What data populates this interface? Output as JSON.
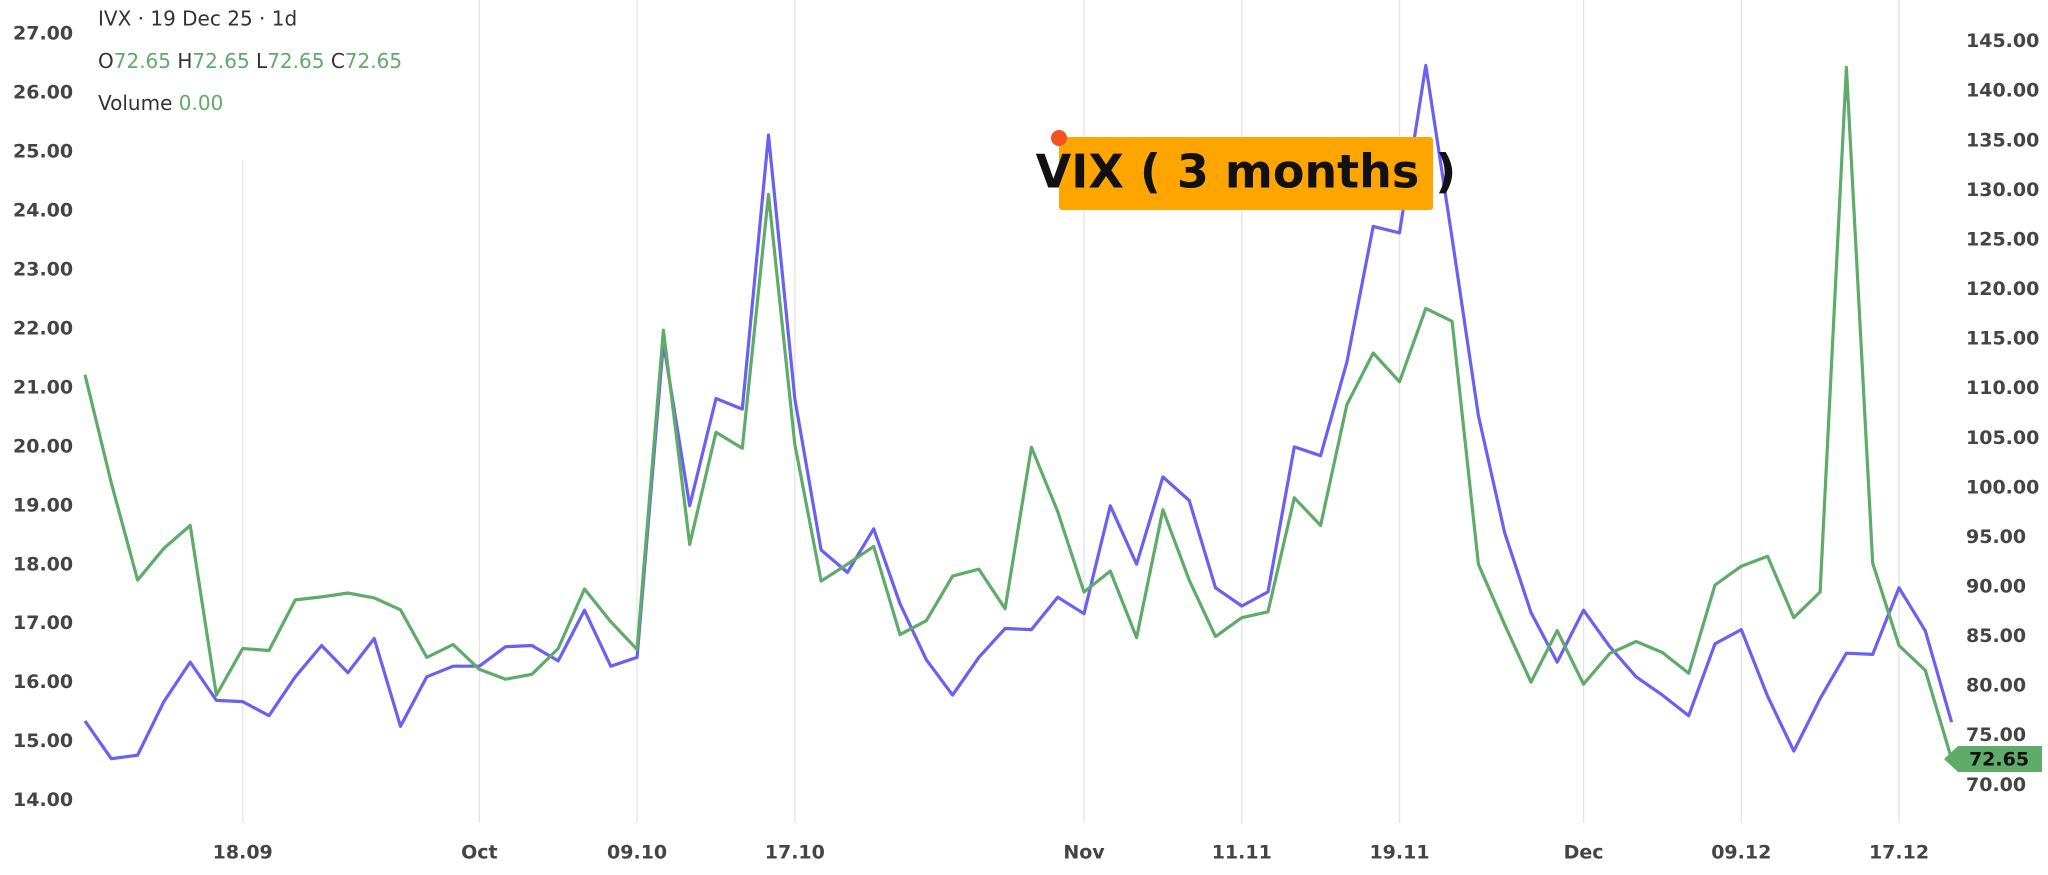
{
  "header": {
    "title": "IVX · 19 Dec 25 · 1d",
    "ohlc": [
      {
        "key": "O",
        "value": "72.65"
      },
      {
        "key": "H",
        "value": "72.65"
      },
      {
        "key": "L",
        "value": "72.65"
      },
      {
        "key": "C",
        "value": "72.65"
      }
    ],
    "volume_label": "Volume",
    "volume": "0.00"
  },
  "chart_data": {
    "type": "line",
    "annotation": "VIX ( 3 months )",
    "categories": [
      null,
      null,
      null,
      null,
      null,
      null,
      "18.09",
      null,
      null,
      null,
      null,
      null,
      null,
      null,
      null,
      "Oct",
      null,
      null,
      null,
      null,
      null,
      "09.10",
      null,
      null,
      null,
      null,
      null,
      "17.10",
      null,
      null,
      null,
      null,
      null,
      null,
      null,
      null,
      null,
      null,
      "Nov",
      null,
      null,
      null,
      null,
      null,
      "11.11",
      null,
      null,
      null,
      null,
      null,
      "19.11",
      null,
      null,
      null,
      null,
      null,
      null,
      "Dec",
      null,
      null,
      null,
      null,
      null,
      "09.12",
      null,
      null,
      null,
      null,
      null,
      "17.12",
      null,
      null
    ],
    "series": [
      {
        "color": "#6a60f2",
        "values": [
          15.35,
          14.71,
          14.77,
          15.68,
          16.35,
          15.7,
          15.68,
          15.44,
          16.1,
          16.63,
          16.17,
          16.75,
          15.26,
          16.1,
          16.28,
          16.28,
          16.61,
          16.63,
          16.37,
          17.23,
          16.28,
          16.43,
          21.77,
          19.0,
          20.82,
          20.64,
          25.29,
          20.82,
          18.25,
          17.87,
          18.61,
          17.34,
          16.39,
          15.79,
          16.43,
          16.92,
          16.9,
          17.45,
          17.17,
          19.0,
          18.01,
          19.49,
          19.09,
          17.61,
          17.3,
          17.54,
          20.0,
          19.85,
          21.44,
          23.74,
          23.63,
          26.47,
          23.54,
          20.53,
          18.54,
          17.19,
          16.35,
          17.23,
          16.61,
          16.1,
          15.79,
          15.44,
          16.66,
          16.9,
          15.77,
          14.84,
          15.73,
          16.5,
          16.48,
          17.61,
          16.88,
          15.33
        ]
      },
      {
        "color": "#5fab6a",
        "axis": "y2",
        "values": [
          111.4,
          100.5,
          90.7,
          93.9,
          96.2,
          79.1,
          83.8,
          83.6,
          88.7,
          89.0,
          89.4,
          88.9,
          87.7,
          82.9,
          84.2,
          81.7,
          80.7,
          81.2,
          83.8,
          89.8,
          86.5,
          83.7,
          115.9,
          94.3,
          105.6,
          104.0,
          129.6,
          104.4,
          90.6,
          92.3,
          94.1,
          85.2,
          86.6,
          91.1,
          91.8,
          87.8,
          104.1,
          97.6,
          89.5,
          91.6,
          84.9,
          97.8,
          90.7,
          85.0,
          86.9,
          87.5,
          99.0,
          96.2,
          108.4,
          113.6,
          110.7,
          118.1,
          116.8,
          92.3,
          86.2,
          80.4,
          85.6,
          80.2,
          83.3,
          84.5,
          83.4,
          81.3,
          90.2,
          92.1,
          93.1,
          86.9,
          89.5,
          142.4,
          92.4,
          84.1,
          81.6,
          72.65
        ]
      }
    ],
    "ylim": [
      13.62,
      27.58
    ],
    "yticks": [
      {
        "value": 14,
        "label": "14.00"
      },
      {
        "value": 15,
        "label": "15.00"
      },
      {
        "value": 16,
        "label": "16.00"
      },
      {
        "value": 17,
        "label": "17.00"
      },
      {
        "value": 18,
        "label": "18.00"
      },
      {
        "value": 19,
        "label": "19.00"
      },
      {
        "value": 20,
        "label": "20.00"
      },
      {
        "value": 21,
        "label": "21.00"
      },
      {
        "value": 22,
        "label": "22.00"
      },
      {
        "value": 23,
        "label": "23.00"
      },
      {
        "value": 24,
        "label": "24.00"
      },
      {
        "value": 25,
        "label": "25.00"
      },
      {
        "value": 26,
        "label": "26.00"
      },
      {
        "value": 27,
        "label": "27.00"
      }
    ],
    "y2lim": [
      66.2,
      149.2
    ],
    "y2ticks": [
      {
        "value": 70,
        "label": "70.00"
      },
      {
        "value": 75,
        "label": "75.00"
      },
      {
        "value": 80,
        "label": "80.00"
      },
      {
        "value": 85,
        "label": "85.00"
      },
      {
        "value": 90,
        "label": "90.00"
      },
      {
        "value": 95,
        "label": "95.00"
      },
      {
        "value": 100,
        "label": "100.00"
      },
      {
        "value": 105,
        "label": "105.00"
      },
      {
        "value": 110,
        "label": "110.00"
      },
      {
        "value": 115,
        "label": "115.00"
      },
      {
        "value": 120,
        "label": "120.00"
      },
      {
        "value": 125,
        "label": "125.00"
      },
      {
        "value": 130,
        "label": "130.00"
      },
      {
        "value": 135,
        "label": "135.00"
      },
      {
        "value": 140,
        "label": "140.00"
      },
      {
        "value": 145,
        "label": "145.00"
      }
    ],
    "grid": true
  }
}
